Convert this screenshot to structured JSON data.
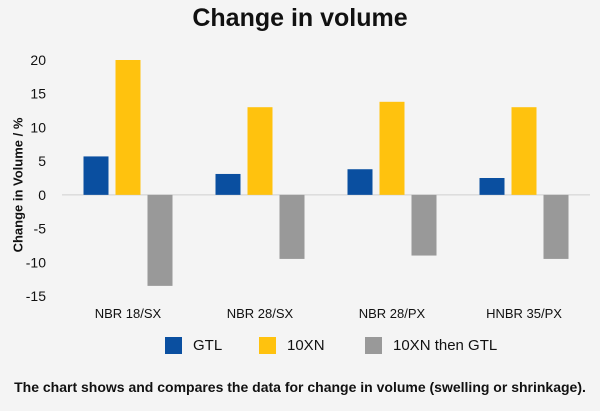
{
  "chart_data": {
    "type": "bar",
    "title": "Change in volume",
    "ylabel": "Change in Volume / %",
    "xlabel": "",
    "categories": [
      "NBR 18/SX",
      "NBR 28/SX",
      "NBR 28/PX",
      "HNBR 35/PX"
    ],
    "series": [
      {
        "name": "GTL",
        "color": "#0a4fa0",
        "values": [
          5.7,
          3.1,
          3.8,
          2.5
        ]
      },
      {
        "name": "10XN",
        "color": "#ffc20e",
        "values": [
          20.0,
          13.0,
          13.8,
          13.0
        ]
      },
      {
        "name": "10XN then GTL",
        "color": "#999999",
        "values": [
          -13.5,
          -9.5,
          -9.0,
          -9.5
        ]
      }
    ],
    "ylim": [
      -15,
      20
    ],
    "yticks": [
      "20",
      "15",
      "10",
      "5",
      "0",
      "-5",
      "-10",
      "-15"
    ],
    "grid": false,
    "legend_position": "bottom",
    "caption": "The chart shows and compares the data for change in volume (swelling or shrinkage)."
  }
}
